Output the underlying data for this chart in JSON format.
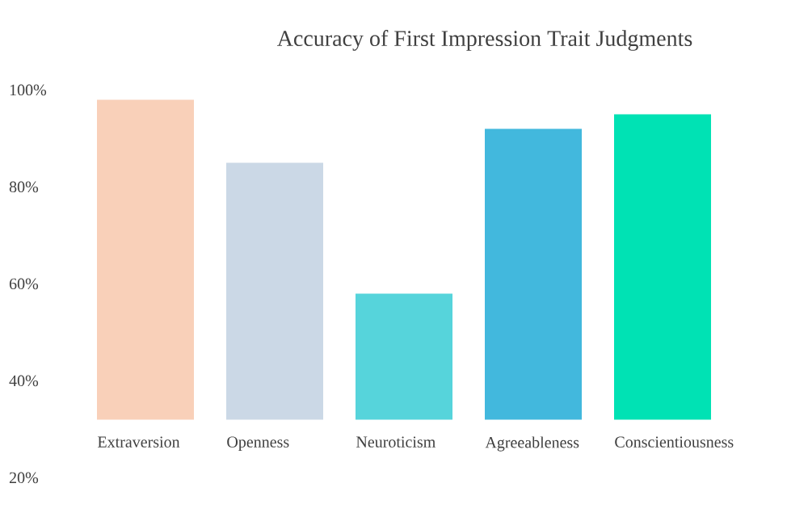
{
  "chart_data": {
    "type": "bar",
    "title": "Accuracy of First Impression Trait Judgments",
    "categories": [
      "Extraversion",
      "Openness",
      "Neuroticism",
      "Agreeableness",
      "Conscientiousness"
    ],
    "base": [
      32,
      32,
      32,
      32,
      32
    ],
    "values": [
      66,
      53,
      26,
      60,
      63
    ],
    "colors": [
      "#f9d0b9",
      "#cbd8e6",
      "#56d4db",
      "#42b8dd",
      "#00e2b4"
    ],
    "ylim": [
      20,
      100
    ],
    "yticks": [
      {
        "value": 20,
        "label": "20%"
      },
      {
        "value": 40,
        "label": "40%"
      },
      {
        "value": 60,
        "label": "60%"
      },
      {
        "value": 80,
        "label": "80%"
      },
      {
        "value": 100,
        "label": "100%"
      }
    ],
    "grid": false
  }
}
